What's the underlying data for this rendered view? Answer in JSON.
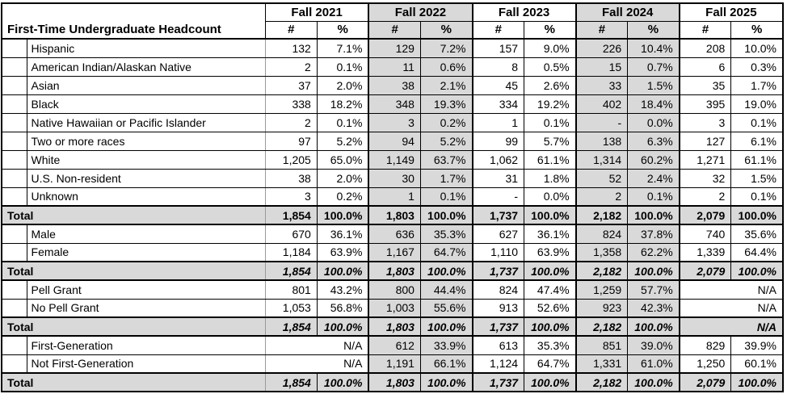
{
  "chart_data": {
    "type": "table",
    "title": "First-Time Undergraduate Headcount",
    "year_headers": [
      "Fall 2021",
      "Fall 2022",
      "Fall 2023",
      "Fall 2024",
      "Fall 2025"
    ],
    "sub_headers": {
      "count": "#",
      "percent": "%"
    },
    "rows": [
      {
        "label": "Hispanic",
        "style": "detail",
        "cells": [
          "132",
          "7.1%",
          "129",
          "7.2%",
          "157",
          "9.0%",
          "226",
          "10.4%",
          "208",
          "10.0%"
        ]
      },
      {
        "label": "American Indian/Alaskan Native",
        "style": "detail",
        "cells": [
          "2",
          "0.1%",
          "11",
          "0.6%",
          "8",
          "0.5%",
          "15",
          "0.7%",
          "6",
          "0.3%"
        ]
      },
      {
        "label": "Asian",
        "style": "detail",
        "cells": [
          "37",
          "2.0%",
          "38",
          "2.1%",
          "45",
          "2.6%",
          "33",
          "1.5%",
          "35",
          "1.7%"
        ]
      },
      {
        "label": "Black",
        "style": "detail",
        "cells": [
          "338",
          "18.2%",
          "348",
          "19.3%",
          "334",
          "19.2%",
          "402",
          "18.4%",
          "395",
          "19.0%"
        ]
      },
      {
        "label": "Native Hawaiian or Pacific Islander",
        "style": "detail",
        "cells": [
          "2",
          "0.1%",
          "3",
          "0.2%",
          "1",
          "0.1%",
          {
            "text": "-",
            "align": "center"
          },
          "0.0%",
          "3",
          "0.1%"
        ]
      },
      {
        "label": "Two or more races",
        "style": "detail",
        "cells": [
          "97",
          "5.2%",
          "94",
          "5.2%",
          "99",
          "5.7%",
          "138",
          "6.3%",
          "127",
          "6.1%"
        ]
      },
      {
        "label": "White",
        "style": "detail",
        "cells": [
          "1,205",
          "65.0%",
          "1,149",
          "63.7%",
          "1,062",
          "61.1%",
          "1,314",
          "60.2%",
          "1,271",
          "61.1%"
        ]
      },
      {
        "label": "U.S. Non-resident",
        "style": "detail",
        "cells": [
          "38",
          "2.0%",
          "30",
          "1.7%",
          "31",
          "1.8%",
          "52",
          "2.4%",
          "32",
          "1.5%"
        ]
      },
      {
        "label": "Unknown",
        "style": "detail",
        "cells": [
          "3",
          "0.2%",
          "1",
          "0.1%",
          {
            "text": "-",
            "align": "center"
          },
          "0.0%",
          "2",
          "0.1%",
          "2",
          "0.1%"
        ]
      },
      {
        "label": "Total",
        "style": "total",
        "cells": [
          "1,854",
          "100.0%",
          "1,803",
          "100.0%",
          "1,737",
          "100.0%",
          "2,182",
          "100.0%",
          "2,079",
          "100.0%"
        ]
      },
      {
        "label": "Male",
        "style": "detail",
        "cells": [
          "670",
          "36.1%",
          "636",
          "35.3%",
          "627",
          "36.1%",
          "824",
          "37.8%",
          "740",
          "35.6%"
        ]
      },
      {
        "label": "Female",
        "style": "detail",
        "cells": [
          "1,184",
          "63.9%",
          "1,167",
          "64.7%",
          "1,110",
          "63.9%",
          "1,358",
          "62.2%",
          "1,339",
          "64.4%"
        ]
      },
      {
        "label": "Total",
        "style": "total-italic",
        "cells": [
          "1,854",
          "100.0%",
          "1,803",
          "100.0%",
          "1,737",
          "100.0%",
          "2,182",
          "100.0%",
          "2,079",
          "100.0%"
        ]
      },
      {
        "label": "Pell Grant",
        "style": "detail",
        "cells": [
          "801",
          "43.2%",
          "800",
          "44.4%",
          "824",
          "47.4%",
          "1,259",
          "57.7%",
          {
            "text": "N/A",
            "span": 2
          }
        ]
      },
      {
        "label": "No Pell Grant",
        "style": "detail",
        "cells": [
          "1,053",
          "56.8%",
          "1,003",
          "55.6%",
          "913",
          "52.6%",
          "923",
          "42.3%",
          {
            "text": "N/A",
            "span": 2
          }
        ]
      },
      {
        "label": "Total",
        "style": "total-italic",
        "cells": [
          "1,854",
          "100.0%",
          "1,803",
          "100.0%",
          "1,737",
          "100.0%",
          "2,182",
          "100.0%",
          {
            "text": "N/A",
            "span": 2
          }
        ]
      },
      {
        "label": "First-Generation",
        "style": "detail",
        "cells": [
          {
            "text": "N/A",
            "span": 2
          },
          "612",
          "33.9%",
          "613",
          "35.3%",
          "851",
          "39.0%",
          "829",
          "39.9%"
        ]
      },
      {
        "label": "Not First-Generation",
        "style": "detail",
        "cells": [
          {
            "text": "N/A",
            "span": 2
          },
          "1,191",
          "66.1%",
          "1,124",
          "64.7%",
          "1,331",
          "61.0%",
          "1,250",
          "60.1%"
        ]
      },
      {
        "label": "Total",
        "style": "total-italic",
        "cells": [
          "1,854",
          "100.0%",
          "1,803",
          "100.0%",
          "1,737",
          "100.0%",
          "2,182",
          "100.0%",
          "2,079",
          "100.0%"
        ]
      }
    ],
    "layout": {
      "shaded_year_columns": [
        "Fall 2022",
        "Fall 2024"
      ],
      "total_rows_shaded": true,
      "grid": true,
      "legend": "none"
    }
  },
  "colors": {
    "shaded_fill": "#d9d9d9",
    "border": "#000000",
    "label_divider_gridline": "#9a9a9a",
    "background": "#ffffff",
    "text": "#000000"
  }
}
